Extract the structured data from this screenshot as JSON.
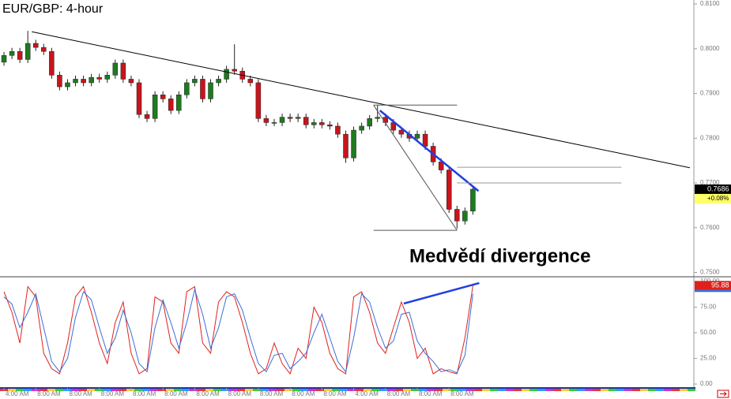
{
  "chart_data": {
    "type": "candlestick",
    "title": "EUR/GBP: 4-hour",
    "annotation": "Medvědí divergence",
    "categories": [
      "4:00 AM",
      null,
      null,
      null,
      "8:00 AM",
      null,
      null,
      null,
      "8:00 AM",
      null,
      null,
      null,
      "8:00 AM",
      null,
      null,
      null,
      "8:00 AM",
      null,
      null,
      null,
      "8:00 AM",
      null,
      null,
      null,
      "8:00 AM",
      null,
      null,
      null,
      "8:00 AM",
      null,
      null,
      null,
      "8:00 AM",
      null,
      null,
      null,
      "8:00 AM",
      null,
      null,
      null,
      "8:00 AM",
      null,
      null,
      null,
      "4:00 AM",
      null,
      null,
      null,
      "8:00 AM",
      null,
      null,
      null,
      "8:00 AM",
      null,
      null,
      null,
      "8:00 AM",
      null,
      null,
      null
    ],
    "xlim": [
      -0.5,
      86.8
    ],
    "open": [
      0.797,
      0.7985,
      0.7994,
      0.7976,
      0.8012,
      0.8003,
      0.7994,
      0.7941,
      0.7915,
      0.7924,
      0.7932,
      0.7924,
      0.7936,
      0.7932,
      0.7941,
      0.7968,
      0.7932,
      0.7924,
      0.7853,
      0.7844,
      0.7897,
      0.7888,
      0.7862,
      0.7897,
      0.7924,
      0.7932,
      0.7888,
      0.7924,
      0.7932,
      0.7954,
      0.795,
      0.7932,
      0.7924,
      0.7844,
      0.7835,
      0.7835,
      0.7847,
      0.7844,
      0.7847,
      0.783,
      0.7835,
      0.783,
      0.7827,
      0.7809,
      0.7756,
      0.7818,
      0.7827,
      0.7844,
      0.7847,
      0.7835,
      0.7818,
      0.7809,
      0.78,
      0.7809,
      0.7782,
      0.7747,
      0.7729,
      0.7641,
      0.7615,
      0.7637
    ],
    "high": [
      0.7993,
      0.8002,
      0.8002,
      0.804,
      0.802,
      0.8011,
      0.8002,
      0.7949,
      0.7932,
      0.794,
      0.794,
      0.7944,
      0.7944,
      0.7949,
      0.7976,
      0.7976,
      0.794,
      0.7932,
      0.7861,
      0.7905,
      0.7905,
      0.7896,
      0.7905,
      0.7932,
      0.794,
      0.794,
      0.7932,
      0.794,
      0.7962,
      0.801,
      0.7958,
      0.794,
      0.7932,
      0.7852,
      0.7843,
      0.7855,
      0.7855,
      0.7855,
      0.7855,
      0.7843,
      0.7843,
      0.7838,
      0.7835,
      0.7817,
      0.7826,
      0.7835,
      0.7852,
      0.7874,
      0.7855,
      0.7843,
      0.7826,
      0.7817,
      0.7817,
      0.7817,
      0.779,
      0.7755,
      0.7737,
      0.7649,
      0.7645,
      0.7694
    ],
    "low": [
      0.7962,
      0.7977,
      0.7968,
      0.7968,
      0.7995,
      0.7986,
      0.7933,
      0.7907,
      0.7907,
      0.7916,
      0.7916,
      0.7916,
      0.7924,
      0.7924,
      0.7933,
      0.7924,
      0.7916,
      0.7845,
      0.7836,
      0.7836,
      0.788,
      0.7854,
      0.7854,
      0.7889,
      0.7916,
      0.788,
      0.788,
      0.7916,
      0.7924,
      0.7942,
      0.7924,
      0.7916,
      0.7836,
      0.7827,
      0.7827,
      0.7827,
      0.7836,
      0.7836,
      0.7822,
      0.7822,
      0.7822,
      0.7819,
      0.7801,
      0.7745,
      0.7748,
      0.781,
      0.7819,
      0.7836,
      0.7827,
      0.781,
      0.7801,
      0.7792,
      0.7792,
      0.7774,
      0.7739,
      0.7721,
      0.7633,
      0.7598,
      0.7607,
      0.7629
    ],
    "close": [
      0.7985,
      0.7994,
      0.7976,
      0.8012,
      0.8003,
      0.7994,
      0.7941,
      0.7915,
      0.7924,
      0.7932,
      0.7924,
      0.7936,
      0.7932,
      0.7941,
      0.7968,
      0.7932,
      0.7924,
      0.7853,
      0.7844,
      0.7897,
      0.7888,
      0.7862,
      0.7897,
      0.7924,
      0.7932,
      0.7888,
      0.7924,
      0.7932,
      0.7954,
      0.795,
      0.7932,
      0.7924,
      0.7844,
      0.7835,
      0.7835,
      0.7847,
      0.7844,
      0.7847,
      0.783,
      0.7835,
      0.783,
      0.7827,
      0.7809,
      0.7756,
      0.7818,
      0.7827,
      0.7844,
      0.7847,
      0.7835,
      0.7818,
      0.7809,
      0.78,
      0.7809,
      0.7782,
      0.7747,
      0.7729,
      0.7641,
      0.7615,
      0.7637,
      0.7686
    ],
    "up_color": "#1e7a1e",
    "down_color": "#c8141c",
    "ylim": [
      0.7492,
      0.8109
    ],
    "yticks": [
      {
        "value": 0.81,
        "label": "0.8100"
      },
      {
        "value": 0.8,
        "label": "0.8000"
      },
      {
        "value": 0.79,
        "label": "0.7900"
      },
      {
        "value": 0.78,
        "label": "0.7800"
      },
      {
        "value": 0.77,
        "label": "0.7700"
      },
      {
        "value": 0.76,
        "label": "0.7600"
      },
      {
        "value": 0.75,
        "label": "0.7500"
      }
    ],
    "last_price": {
      "value": 0.7686,
      "label": "0.7686"
    },
    "change": {
      "value": 0.08,
      "label": "+0.08%"
    },
    "lines": [
      {
        "x": [
          3.5,
          86.3
        ],
        "y": [
          0.8038,
          0.7734
        ],
        "color": "#000000"
      },
      {
        "x": [
          47.3,
          59.7
        ],
        "y": [
          0.7862,
          0.7682
        ],
        "color": "#1f3fe0"
      },
      {
        "x": [
          46.5,
          57
        ],
        "y": [
          0.7874,
          0.7874
        ],
        "color": "#555555"
      },
      {
        "x": [
          46.5,
          57
        ],
        "y": [
          0.7594,
          0.7594
        ],
        "color": "#555555"
      },
      {
        "x": [
          46.5,
          57
        ],
        "y": [
          0.7874,
          0.7594
        ],
        "color": "#555555"
      },
      {
        "x": [
          57,
          77.7
        ],
        "y": [
          0.7735,
          0.7735
        ],
        "color": "#999999"
      },
      {
        "x": [
          57,
          77.7
        ],
        "y": [
          0.77,
          0.77
        ],
        "color": "#999999"
      }
    ],
    "oscillator": {
      "ylim": [
        -3.8,
        103.8
      ],
      "yticks": [
        {
          "value": 100,
          "label": "100.00"
        },
        {
          "value": 75,
          "label": "75.00"
        },
        {
          "value": 50,
          "label": "50.00"
        },
        {
          "value": 25,
          "label": "25.00"
        },
        {
          "value": 0,
          "label": "0.00"
        }
      ],
      "series": [
        {
          "color": "#e0201c",
          "values": [
            90,
            70,
            40,
            95,
            85,
            30,
            15,
            10,
            40,
            85,
            95,
            70,
            40,
            20,
            60,
            80,
            30,
            10,
            15,
            85,
            80,
            40,
            30,
            90,
            95,
            40,
            30,
            80,
            90,
            85,
            60,
            30,
            10,
            15,
            40,
            20,
            10,
            35,
            25,
            75,
            60,
            30,
            15,
            10,
            85,
            90,
            70,
            40,
            30,
            55,
            80,
            60,
            25,
            35,
            10,
            15,
            12,
            10,
            45,
            95.88
          ]
        },
        {
          "color": "#3a6fd8",
          "values": [
            85,
            78,
            55,
            70,
            88,
            55,
            22,
            12,
            25,
            65,
            90,
            82,
            55,
            30,
            45,
            72,
            50,
            20,
            12,
            55,
            82,
            60,
            35,
            60,
            92,
            68,
            35,
            55,
            85,
            88,
            72,
            45,
            20,
            12,
            28,
            30,
            15,
            22,
            30,
            50,
            68,
            45,
            22,
            12,
            45,
            88,
            80,
            55,
            35,
            42,
            68,
            70,
            42,
            30,
            22,
            12,
            14,
            11,
            28,
            88
          ]
        }
      ],
      "last": {
        "value": 95.88,
        "label": "95.88"
      },
      "divergence": {
        "x": [
          50.3,
          59.8
        ],
        "y": [
          78.5,
          98.5
        ],
        "color": "#1f3fe0"
      }
    }
  }
}
